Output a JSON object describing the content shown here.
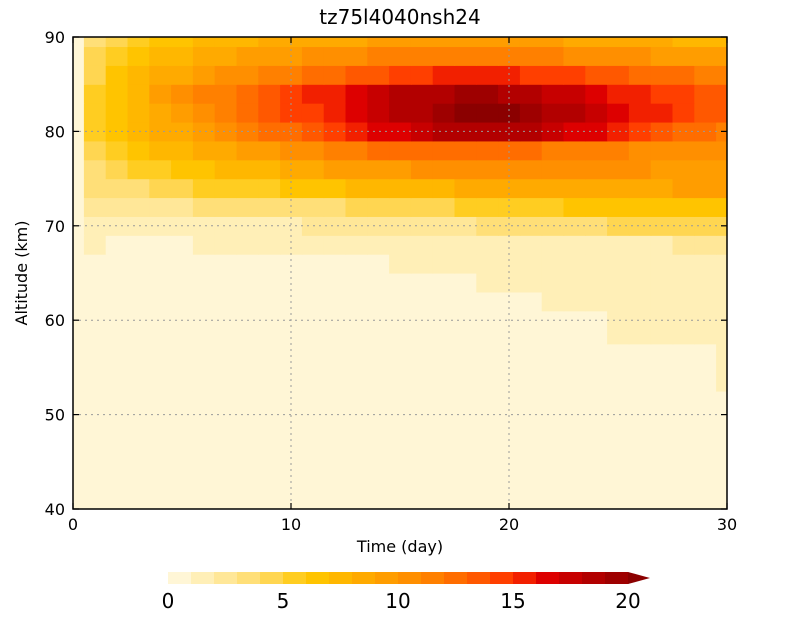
{
  "chart_data": {
    "type": "heatmap",
    "title": "tz75l4040nsh24",
    "xlabel": "Time (day)",
    "ylabel": "Altitude (km)",
    "xlim": [
      0,
      30
    ],
    "ylim": [
      40,
      90
    ],
    "grid": true,
    "x_ticks": [
      "0",
      "10",
      "20",
      "30"
    ],
    "y_ticks": [
      "40",
      "50",
      "60",
      "70",
      "80",
      "90"
    ],
    "colorbar": {
      "orientation": "horizontal",
      "levels": [
        0,
        1,
        2,
        3,
        4,
        5,
        6,
        7,
        8,
        9,
        10,
        11,
        12,
        13,
        14,
        15,
        16,
        17,
        18,
        19,
        20
      ],
      "tick_labels": [
        "0",
        "5",
        "10",
        "15",
        "20"
      ],
      "colors": [
        "#fff6d6",
        "#ffefb7",
        "#ffe798",
        "#ffdf78",
        "#ffd651",
        "#ffcd21",
        "#ffc400",
        "#ffb700",
        "#ffaa00",
        "#ff9d00",
        "#ff8f00",
        "#ff8000",
        "#ff6d00",
        "#ff5800",
        "#ff3f00",
        "#f22000",
        "#dd0000",
        "#c70000",
        "#b20000",
        "#9e0000",
        "#8b0000"
      ],
      "extend": "max"
    },
    "time_days": [
      0,
      1,
      2,
      3,
      4,
      5,
      6,
      7,
      8,
      9,
      10,
      11,
      12,
      13,
      14,
      15,
      16,
      17,
      18,
      19,
      20,
      21,
      22,
      23,
      24,
      25,
      26,
      27,
      28,
      29,
      30
    ],
    "altitude_km": [
      40,
      45,
      50,
      55,
      60,
      62,
      64,
      66,
      68,
      70,
      72,
      74,
      76,
      78,
      80,
      82,
      84,
      86,
      88,
      90
    ],
    "values": [
      [
        0.5,
        0.5,
        0.5,
        0.5,
        0.5,
        0.5,
        0.5,
        0.5,
        0.5,
        0.5,
        0.5,
        0.5,
        0.5,
        0.5,
        0.5,
        0.5,
        0.5,
        0.5,
        0.5,
        0.5,
        0.5,
        0.5,
        0.5,
        0.5,
        0.5,
        0.5,
        0.5,
        0.5,
        0.5,
        0.5,
        0.5
      ],
      [
        0.5,
        0.5,
        0.5,
        0.5,
        0.5,
        0.5,
        0.5,
        0.5,
        0.5,
        0.5,
        0.5,
        0.5,
        0.5,
        0.5,
        0.5,
        0.5,
        0.5,
        0.5,
        0.5,
        0.5,
        0.5,
        0.5,
        0.5,
        0.5,
        0.5,
        0.5,
        0.5,
        0.5,
        0.5,
        0.5,
        0.5
      ],
      [
        0.5,
        0.5,
        0.5,
        0.5,
        0.5,
        0.5,
        0.5,
        0.5,
        0.5,
        0.5,
        0.5,
        0.5,
        0.5,
        0.5,
        0.5,
        0.5,
        0.5,
        0.5,
        0.5,
        0.5,
        0.5,
        0.5,
        0.5,
        0.5,
        0.5,
        0.5,
        0.5,
        0.5,
        0.5,
        0.5,
        0.5
      ],
      [
        0.5,
        0.5,
        0.5,
        0.5,
        0.5,
        0.5,
        0.5,
        0.5,
        0.5,
        0.5,
        0.5,
        0.5,
        0.5,
        0.5,
        0.5,
        0.5,
        0.5,
        0.5,
        0.5,
        0.5,
        0.5,
        0.5,
        0.5,
        0.5,
        0.5,
        0.5,
        0.5,
        0.5,
        0.6,
        0.8,
        1.0
      ],
      [
        0.5,
        0.5,
        0.5,
        0.5,
        0.5,
        0.5,
        0.5,
        0.5,
        0.5,
        0.5,
        0.5,
        0.5,
        0.5,
        0.5,
        0.5,
        0.5,
        0.5,
        0.5,
        0.5,
        0.5,
        0.5,
        0.5,
        0.5,
        0.6,
        0.8,
        1.0,
        1.1,
        1.2,
        1.3,
        1.4,
        1.5
      ],
      [
        0.5,
        0.5,
        0.5,
        0.5,
        0.5,
        0.5,
        0.5,
        0.5,
        0.5,
        0.5,
        0.5,
        0.5,
        0.5,
        0.5,
        0.5,
        0.5,
        0.5,
        0.5,
        0.5,
        0.5,
        0.6,
        0.8,
        1.1,
        1.2,
        1.3,
        1.3,
        1.4,
        1.4,
        1.5,
        1.5,
        1.6
      ],
      [
        0.5,
        0.5,
        0.5,
        0.5,
        0.5,
        0.5,
        0.5,
        0.5,
        0.5,
        0.5,
        0.5,
        0.5,
        0.5,
        0.5,
        0.5,
        0.5,
        0.6,
        0.7,
        0.9,
        1.1,
        1.2,
        1.3,
        1.4,
        1.4,
        1.5,
        1.5,
        1.5,
        1.6,
        1.6,
        1.7,
        1.7
      ],
      [
        0.5,
        0.5,
        0.5,
        0.5,
        0.5,
        0.5,
        0.5,
        0.5,
        0.5,
        0.5,
        0.5,
        0.5,
        0.6,
        0.7,
        0.9,
        1.1,
        1.2,
        1.3,
        1.3,
        1.4,
        1.4,
        1.5,
        1.5,
        1.6,
        1.6,
        1.7,
        1.7,
        1.7,
        1.8,
        1.8,
        1.9
      ],
      [
        0.5,
        1.1,
        0.8,
        0.8,
        0.9,
        0.9,
        1.0,
        1.0,
        1.1,
        1.1,
        1.2,
        1.2,
        1.3,
        1.3,
        1.4,
        1.4,
        1.5,
        1.5,
        1.6,
        1.6,
        1.7,
        1.7,
        1.7,
        1.8,
        1.8,
        1.9,
        1.9,
        1.9,
        2.0,
        2.1,
        2.2
      ],
      [
        0.5,
        1.6,
        1.5,
        1.6,
        1.6,
        1.7,
        1.7,
        1.7,
        1.8,
        1.8,
        1.9,
        2.0,
        2.0,
        2.1,
        2.2,
        2.3,
        2.4,
        2.6,
        2.8,
        3.0,
        3.1,
        3.3,
        3.5,
        3.7,
        3.9,
        4.0,
        4.1,
        4.2,
        4.3,
        4.4,
        4.5
      ],
      [
        0.5,
        2.1,
        2.2,
        2.4,
        2.6,
        2.8,
        3.0,
        3.2,
        3.3,
        3.4,
        3.5,
        3.7,
        3.9,
        4.1,
        4.3,
        4.5,
        4.7,
        4.9,
        5.1,
        5.3,
        5.5,
        5.7,
        5.9,
        6.1,
        6.2,
        6.3,
        6.4,
        6.4,
        6.5,
        6.6,
        6.7
      ],
      [
        0.5,
        3.0,
        3.5,
        3.9,
        4.2,
        4.6,
        5.0,
        5.3,
        5.6,
        5.9,
        6.2,
        6.5,
        6.8,
        7.0,
        7.3,
        7.5,
        7.7,
        7.9,
        8.1,
        8.3,
        8.4,
        8.5,
        8.6,
        8.7,
        8.8,
        8.8,
        8.9,
        8.9,
        9.0,
        9.0,
        9.0
      ],
      [
        0.5,
        3.8,
        4.4,
        5.0,
        5.6,
        6.1,
        6.6,
        7.0,
        7.4,
        7.8,
        8.2,
        8.6,
        9.0,
        9.3,
        9.6,
        9.9,
        10.1,
        10.3,
        10.4,
        10.5,
        10.5,
        10.5,
        10.4,
        10.3,
        10.2,
        10.1,
        10.0,
        9.9,
        9.8,
        9.7,
        9.6
      ],
      [
        0.5,
        4.5,
        5.4,
        6.2,
        7.0,
        7.6,
        8.2,
        8.8,
        9.4,
        9.9,
        10.4,
        10.9,
        11.4,
        11.8,
        12.2,
        12.5,
        12.7,
        12.8,
        12.8,
        12.7,
        12.5,
        12.2,
        11.9,
        11.6,
        11.3,
        11.0,
        10.8,
        10.6,
        10.4,
        10.3,
        10.2
      ],
      [
        0.5,
        5.0,
        6.0,
        7.0,
        8.0,
        8.8,
        9.6,
        10.4,
        11.2,
        12.0,
        12.8,
        13.6,
        14.4,
        15.2,
        16.0,
        16.8,
        17.5,
        18.1,
        18.6,
        18.8,
        18.7,
        18.2,
        17.5,
        16.8,
        16.0,
        15.2,
        14.4,
        13.6,
        12.8,
        12.2,
        11.8
      ],
      [
        0.5,
        5.2,
        6.4,
        7.6,
        8.8,
        9.8,
        10.8,
        11.6,
        12.4,
        13.2,
        14.0,
        14.9,
        15.8,
        16.6,
        17.4,
        18.2,
        18.9,
        19.5,
        20.0,
        20.3,
        20.2,
        19.6,
        18.8,
        18.0,
        17.2,
        16.5,
        15.8,
        15.0,
        14.2,
        13.6,
        13.2
      ],
      [
        0.5,
        5.4,
        6.6,
        7.8,
        9.0,
        10.0,
        11.0,
        11.8,
        12.6,
        13.4,
        14.2,
        15.0,
        15.8,
        16.6,
        17.3,
        18.0,
        18.5,
        18.9,
        19.1,
        19.1,
        18.8,
        18.3,
        17.7,
        17.1,
        16.5,
        15.9,
        15.4,
        14.8,
        14.2,
        13.8,
        13.5
      ],
      [
        0.5,
        4.8,
        6.0,
        7.0,
        8.0,
        8.8,
        9.6,
        10.2,
        10.8,
        11.4,
        11.9,
        12.4,
        12.9,
        13.4,
        13.9,
        14.3,
        14.7,
        15.0,
        15.2,
        15.3,
        15.2,
        14.9,
        14.5,
        14.1,
        13.7,
        13.3,
        12.9,
        12.5,
        12.1,
        11.8,
        11.6
      ],
      [
        0.5,
        4.3,
        5.3,
        6.2,
        7.0,
        7.6,
        8.2,
        8.7,
        9.1,
        9.5,
        9.9,
        10.2,
        10.5,
        10.8,
        11.1,
        11.3,
        11.5,
        11.7,
        11.8,
        11.8,
        11.7,
        11.5,
        11.2,
        10.9,
        10.6,
        10.3,
        10.0,
        9.7,
        9.4,
        9.2,
        9.0
      ],
      [
        0.5,
        3.8,
        4.7,
        5.4,
        6.0,
        6.5,
        7.0,
        7.4,
        7.7,
        8.0,
        8.3,
        8.5,
        8.7,
        8.9,
        9.1,
        9.3,
        9.4,
        9.5,
        9.6,
        9.6,
        9.5,
        9.3,
        9.1,
        8.9,
        8.7,
        8.5,
        8.3,
        8.1,
        7.9,
        7.7,
        7.5
      ]
    ]
  }
}
